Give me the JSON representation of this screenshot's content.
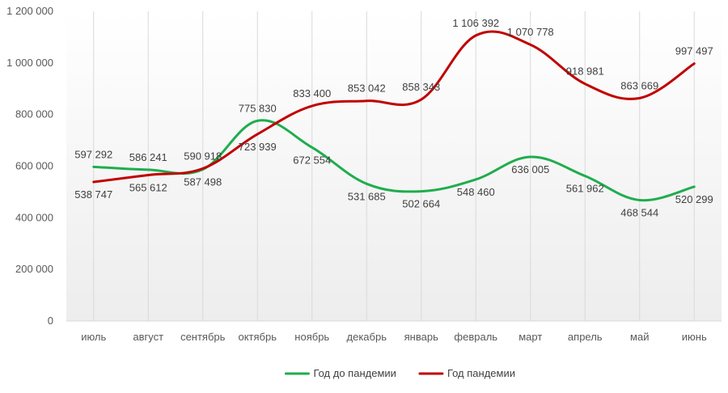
{
  "chart_data": {
    "type": "line",
    "title": "",
    "xlabel": "",
    "ylabel": "",
    "categories": [
      "июль",
      "август",
      "сентябрь",
      "октябрь",
      "ноябрь",
      "декабрь",
      "январь",
      "февраль",
      "март",
      "апрель",
      "май",
      "июнь"
    ],
    "ylim": [
      0,
      1200000
    ],
    "yticks": [
      0,
      200000,
      400000,
      600000,
      800000,
      1000000,
      1200000
    ],
    "ytick_labels": [
      "0",
      "200 000",
      "400 000",
      "600 000",
      "800 000",
      "1 000 000",
      "1 200 000"
    ],
    "grid": "vertical",
    "legend_position": "bottom",
    "series": [
      {
        "name": "Год до пандемии",
        "color": "#1fad4d",
        "values": [
          597292,
          586241,
          587498,
          775830,
          672554,
          531685,
          502664,
          548460,
          636005,
          561962,
          468544,
          520299
        ],
        "labels": [
          "597 292",
          "586 241",
          "587 498",
          "775 830",
          "672 554",
          "531 685",
          "502 664",
          "548 460",
          "636 005",
          "561 962",
          "468 544",
          "520 299"
        ]
      },
      {
        "name": "Год пандемии",
        "color": "#c00000",
        "values": [
          538747,
          565612,
          590918,
          723939,
          833400,
          853042,
          858343,
          1106392,
          1070778,
          918981,
          863669,
          997497
        ],
        "labels": [
          "538 747",
          "565 612",
          "590 918",
          "723 939",
          "833 400",
          "853 042",
          "858 343",
          "1 106 392",
          "1 070 778",
          "918 981",
          "863 669",
          "997 497"
        ]
      }
    ]
  }
}
